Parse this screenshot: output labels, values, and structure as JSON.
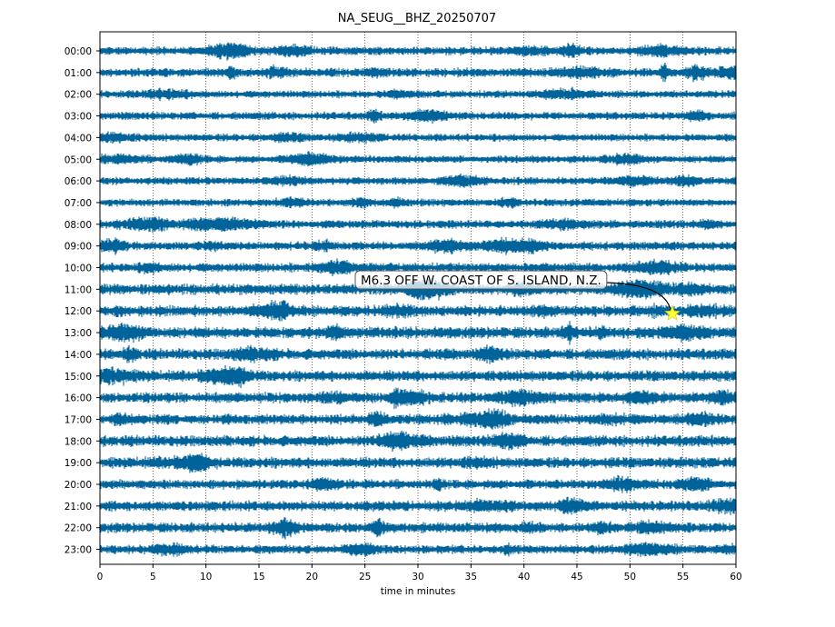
{
  "chart_data": {
    "type": "line",
    "title": "NA_SEUG__BHZ_20250707",
    "xlabel": "time in minutes",
    "ylabel": "",
    "xlim": [
      0,
      60
    ],
    "x_ticks": [
      0,
      5,
      10,
      15,
      20,
      25,
      30,
      35,
      40,
      45,
      50,
      55,
      60
    ],
    "rows": [
      "00:00",
      "01:00",
      "02:00",
      "03:00",
      "04:00",
      "05:00",
      "06:00",
      "07:00",
      "08:00",
      "09:00",
      "10:00",
      "11:00",
      "12:00",
      "13:00",
      "14:00",
      "15:00",
      "16:00",
      "17:00",
      "18:00",
      "19:00",
      "20:00",
      "21:00",
      "22:00",
      "23:00"
    ],
    "trace_color": "#00649a",
    "grid": "vertical dotted at each x tick",
    "annotation": {
      "text": "M6.3 OFF W. COAST OF S. ISLAND, N.Z.",
      "marker": "star",
      "marker_color": "#ffff33",
      "row": "12:00",
      "minute": 54
    },
    "row_noise_level": [
      0.45,
      0.55,
      0.35,
      0.4,
      0.35,
      0.35,
      0.35,
      0.35,
      0.45,
      0.5,
      0.6,
      0.8,
      0.85,
      0.9,
      0.85,
      0.8,
      0.75,
      0.7,
      0.85,
      0.8,
      0.65,
      0.75,
      0.7,
      0.5
    ]
  }
}
